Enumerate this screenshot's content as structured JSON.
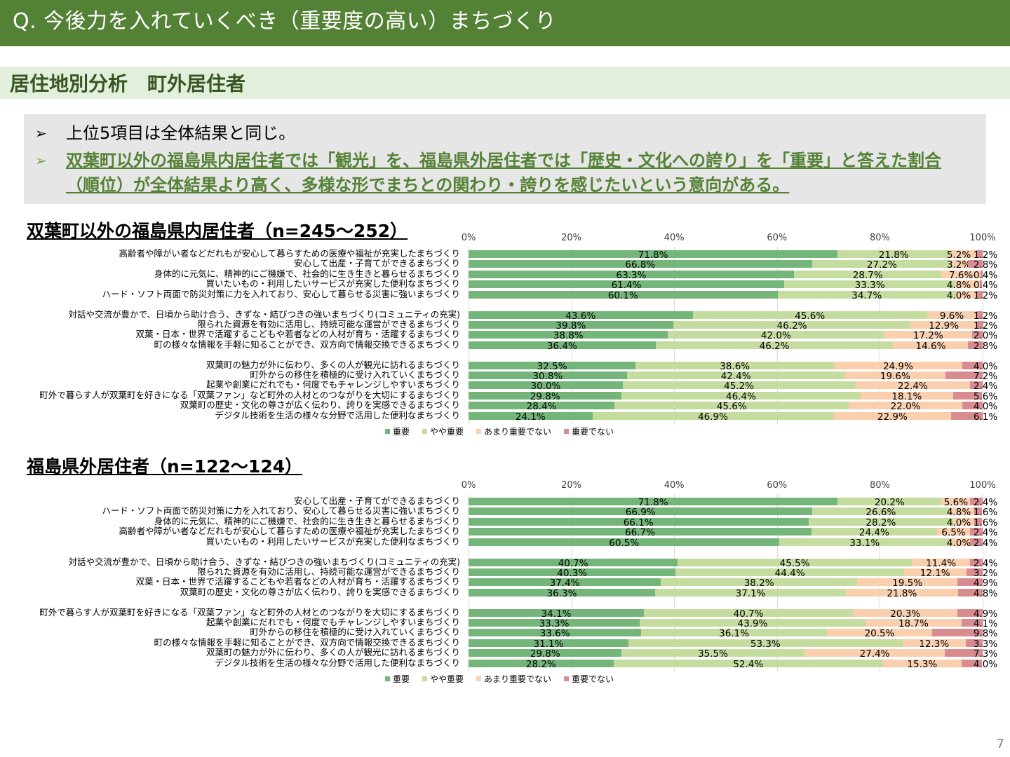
{
  "header": {
    "title": "Q.  今後力を入れていくべき（重要度の高い）まちづくり"
  },
  "subheader": {
    "title": "居住地別分析　町外居住者"
  },
  "summary": {
    "bullets": [
      {
        "text": "上位5項目は全体結果と同じ。"
      },
      {
        "text": "双葉町以外の福島県内居住者では「観光」を、福島県外居住者では「歴史・文化への誇り」を「重要」と答えた割合（順位）が全体結果より高く、多様な形でまちとの関わり・誇りを感じたいという意向がある。"
      }
    ],
    "arrow_glyph": "➢"
  },
  "page_number": "7",
  "colors": {
    "重要": "#74b67a",
    "やや重要": "#c5dc9f",
    "あまり重要でない": "#f9cfae",
    "重要でない": "#d98c8f",
    "header_bg": "#538135",
    "subheader_bg": "#e2efda"
  },
  "chart_data": [
    {
      "type": "bar",
      "orientation": "horizontal-stacked-100",
      "title": "双葉町以外の福島県内居住者（n=245～252）",
      "x_ticks": [
        "0%",
        "20%",
        "40%",
        "60%",
        "80%",
        "100%"
      ],
      "xlim": [
        0,
        100
      ],
      "grid": true,
      "legend": [
        "重要",
        "やや重要",
        "あまり重要でない",
        "重要でない"
      ],
      "legend_position": "bottom",
      "groups": [
        [
          {
            "label": "高齢者や障がい者などだれもが安心して暮らすための医療や福祉が充実したまちづくり",
            "values": [
              71.8,
              21.8,
              5.2,
              1.2
            ]
          },
          {
            "label": "安心して出産・子育てができるまちづくり",
            "values": [
              66.8,
              27.2,
              3.2,
              2.8
            ]
          },
          {
            "label": "身体的に元気に、精神的にご機嫌で、社会的に生き生きと暮らせるまちづくり",
            "values": [
              63.3,
              28.7,
              7.6,
              0.4
            ]
          },
          {
            "label": "買いたいもの・利用したいサービスが充実した便利なまちづくり",
            "values": [
              61.4,
              33.3,
              4.8,
              0.4
            ]
          },
          {
            "label": "ハード・ソフト両面で防災対策に力を入れており、安心して暮らせる災害に強いまちづくり",
            "values": [
              60.1,
              34.7,
              4.0,
              1.2
            ]
          }
        ],
        [
          {
            "label": "対話や交流が豊かで、日頃から助け合う、きずな・結びつきの強いまちづくり(コミュニティの充実)",
            "values": [
              43.6,
              45.6,
              9.6,
              1.2
            ]
          },
          {
            "label": "限られた資源を有効に活用し、持続可能な運営ができるまちづくり",
            "values": [
              39.8,
              46.2,
              12.9,
              1.2
            ]
          },
          {
            "label": "双葉・日本・世界で活躍するこどもや若者などの人材が育ち・活躍するまちづくり",
            "values": [
              38.8,
              42.0,
              17.2,
              2.0
            ]
          },
          {
            "label": "町の様々な情報を手軽に知ることができ、双方向で情報交換できるまちづくり",
            "values": [
              36.4,
              46.2,
              14.6,
              2.8
            ]
          }
        ],
        [
          {
            "label": "双葉町の魅力が外に伝わり、多くの人が観光に訪れるまちづくり",
            "values": [
              32.5,
              38.6,
              24.9,
              4.0
            ]
          },
          {
            "label": "町外からの移住を積極的に受け入れていくまちづくり",
            "values": [
              30.8,
              42.4,
              19.6,
              7.2
            ]
          },
          {
            "label": "起業や創業にだれでも・何度でもチャレンジしやすいまちづくり",
            "values": [
              30.0,
              45.2,
              22.4,
              2.4
            ]
          },
          {
            "label": "町外で暮らす人が双葉町を好きになる「双葉ファン」など町外の人材とのつながりを大切にするまちづくり",
            "values": [
              29.8,
              46.4,
              18.1,
              5.6
            ]
          },
          {
            "label": "双葉町の歴史・文化の尊さが広く伝わり、誇りを実感できるまちづくり",
            "values": [
              28.4,
              45.6,
              22.0,
              4.0
            ]
          },
          {
            "label": "デジタル技術を生活の様々な分野で活用した便利なまちづくり",
            "values": [
              24.1,
              46.9,
              22.9,
              6.1
            ]
          }
        ]
      ]
    },
    {
      "type": "bar",
      "orientation": "horizontal-stacked-100",
      "title": "福島県外居住者（n=122～124）",
      "x_ticks": [
        "0%",
        "20%",
        "40%",
        "60%",
        "80%",
        "100%"
      ],
      "xlim": [
        0,
        100
      ],
      "grid": true,
      "legend": [
        "重要",
        "やや重要",
        "あまり重要でない",
        "重要でない"
      ],
      "legend_position": "bottom",
      "groups": [
        [
          {
            "label": "安心して出産・子育てができるまちづくり",
            "values": [
              71.8,
              20.2,
              5.6,
              2.4
            ]
          },
          {
            "label": "ハード・ソフト両面で防災対策に力を入れており、安心して暮らせる災害に強いまちづくり",
            "values": [
              66.9,
              26.6,
              4.8,
              1.6
            ]
          },
          {
            "label": "身体的に元気に、精神的にご機嫌で、社会的に生き生きと暮らせるまちづくり",
            "values": [
              66.1,
              28.2,
              4.0,
              1.6
            ]
          },
          {
            "label": "高齢者や障がい者などだれもが安心して暮らすための医療や福祉が充実したまちづくり",
            "values": [
              66.7,
              24.4,
              6.5,
              2.4
            ]
          },
          {
            "label": "買いたいもの・利用したいサービスが充実した便利なまちづくり",
            "values": [
              60.5,
              33.1,
              4.0,
              2.4
            ]
          }
        ],
        [
          {
            "label": "対話や交流が豊かで、日頃から助け合う、きずな・結びつきの強いまちづくり(コミュニティの充実)",
            "values": [
              40.7,
              45.5,
              11.4,
              2.4
            ]
          },
          {
            "label": "限られた資源を有効に活用し、持続可能な運営ができるまちづくり",
            "values": [
              40.3,
              44.4,
              12.1,
              3.2
            ]
          },
          {
            "label": "双葉・日本・世界で活躍するこどもや若者などの人材が育ち・活躍するまちづくり",
            "values": [
              37.4,
              38.2,
              19.5,
              4.9
            ]
          },
          {
            "label": "双葉町の歴史・文化の尊さが広く伝わり、誇りを実感できるまちづくり",
            "values": [
              36.3,
              37.1,
              21.8,
              4.8
            ]
          }
        ],
        [
          {
            "label": "町外で暮らす人が双葉町を好きになる「双葉ファン」など町外の人材とのつながりを大切にするまちづくり",
            "values": [
              34.1,
              40.7,
              20.3,
              4.9
            ]
          },
          {
            "label": "起業や創業にだれでも・何度でもチャレンジしやすいまちづくり",
            "values": [
              33.3,
              43.9,
              18.7,
              4.1
            ]
          },
          {
            "label": "町外からの移住を積極的に受け入れていくまちづくり",
            "values": [
              33.6,
              36.1,
              20.5,
              9.8
            ]
          },
          {
            "label": "町の様々な情報を手軽に知ることができ、双方向で情報交換できるまちづくり",
            "values": [
              31.1,
              53.3,
              12.3,
              3.3
            ]
          },
          {
            "label": "双葉町の魅力が外に伝わり、多くの人が観光に訪れるまちづくり",
            "values": [
              29.8,
              35.5,
              27.4,
              7.3
            ]
          },
          {
            "label": "デジタル技術を生活の様々な分野で活用した便利なまちづくり",
            "values": [
              28.2,
              52.4,
              15.3,
              4.0
            ]
          }
        ]
      ]
    }
  ]
}
